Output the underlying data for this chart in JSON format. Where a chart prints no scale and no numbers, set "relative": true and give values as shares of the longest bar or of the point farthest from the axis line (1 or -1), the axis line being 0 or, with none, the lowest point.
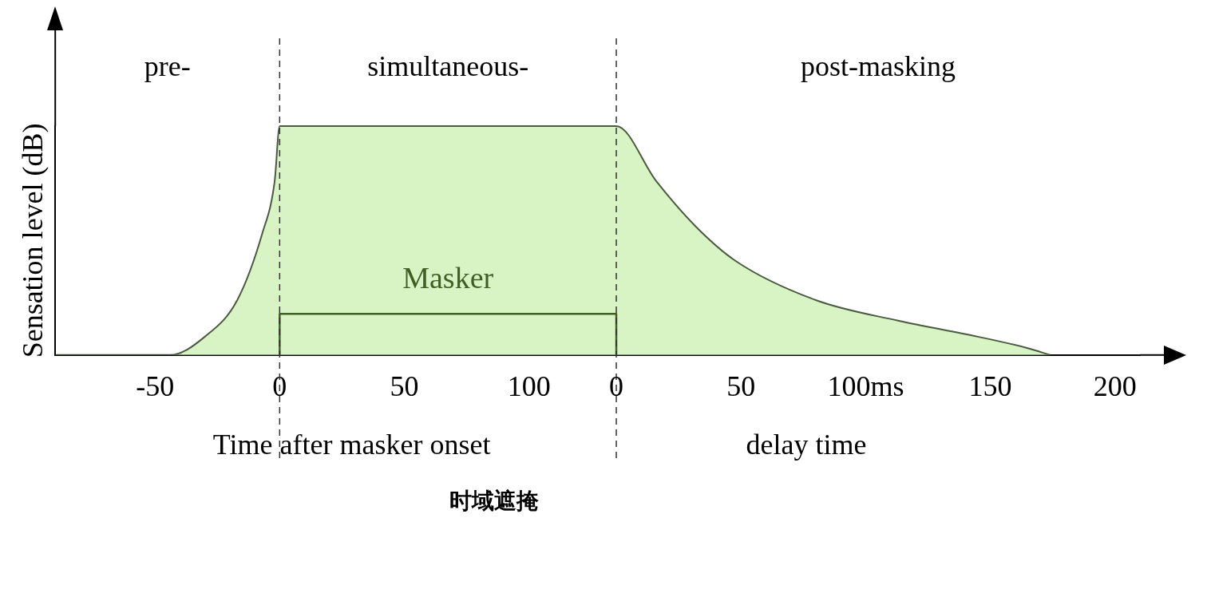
{
  "chart_data": {
    "type": "area",
    "relative": true,
    "ylabel": "Sensation level (dB)",
    "xlabel": "Time after masker onset",
    "x2label": "delay time",
    "xlim": [
      -90,
      345
    ],
    "xticks": [
      -50,
      0,
      50,
      100
    ],
    "x2lim": [
      -225,
      210
    ],
    "x2ticks": [
      0,
      50,
      {
        "value": 100,
        "label": "100ms"
      },
      150,
      200
    ],
    "grid": false,
    "legend": false,
    "marker": "none",
    "series": [
      {
        "color": "#d8f4c4",
        "x": [
          -90,
          -44,
          -30,
          -17,
          -7,
          -2,
          0,
          135,
          151,
          167,
          183,
          215,
          248,
          280,
          300,
          309
        ],
        "values": [
          0,
          0,
          0.08,
          0.24,
          0.53,
          0.76,
          1,
          1,
          0.76,
          0.56,
          0.41,
          0.24,
          0.15,
          0.08,
          0.03,
          0
        ]
      },
      {
        "type": "line",
        "name": "Masker",
        "color": "#3f5f25",
        "x": [
          0,
          0,
          135,
          135
        ],
        "values": [
          0,
          0.18,
          0.18,
          0
        ]
      }
    ],
    "ref_lines": [
      {
        "axis": "x",
        "value": 0,
        "line_style": "dashed"
      },
      {
        "axis": "x",
        "value": 135,
        "line_style": "dashed"
      }
    ],
    "annotations": [
      "pre-",
      "simultaneous-",
      "post-masking",
      "时域遮掩"
    ]
  }
}
